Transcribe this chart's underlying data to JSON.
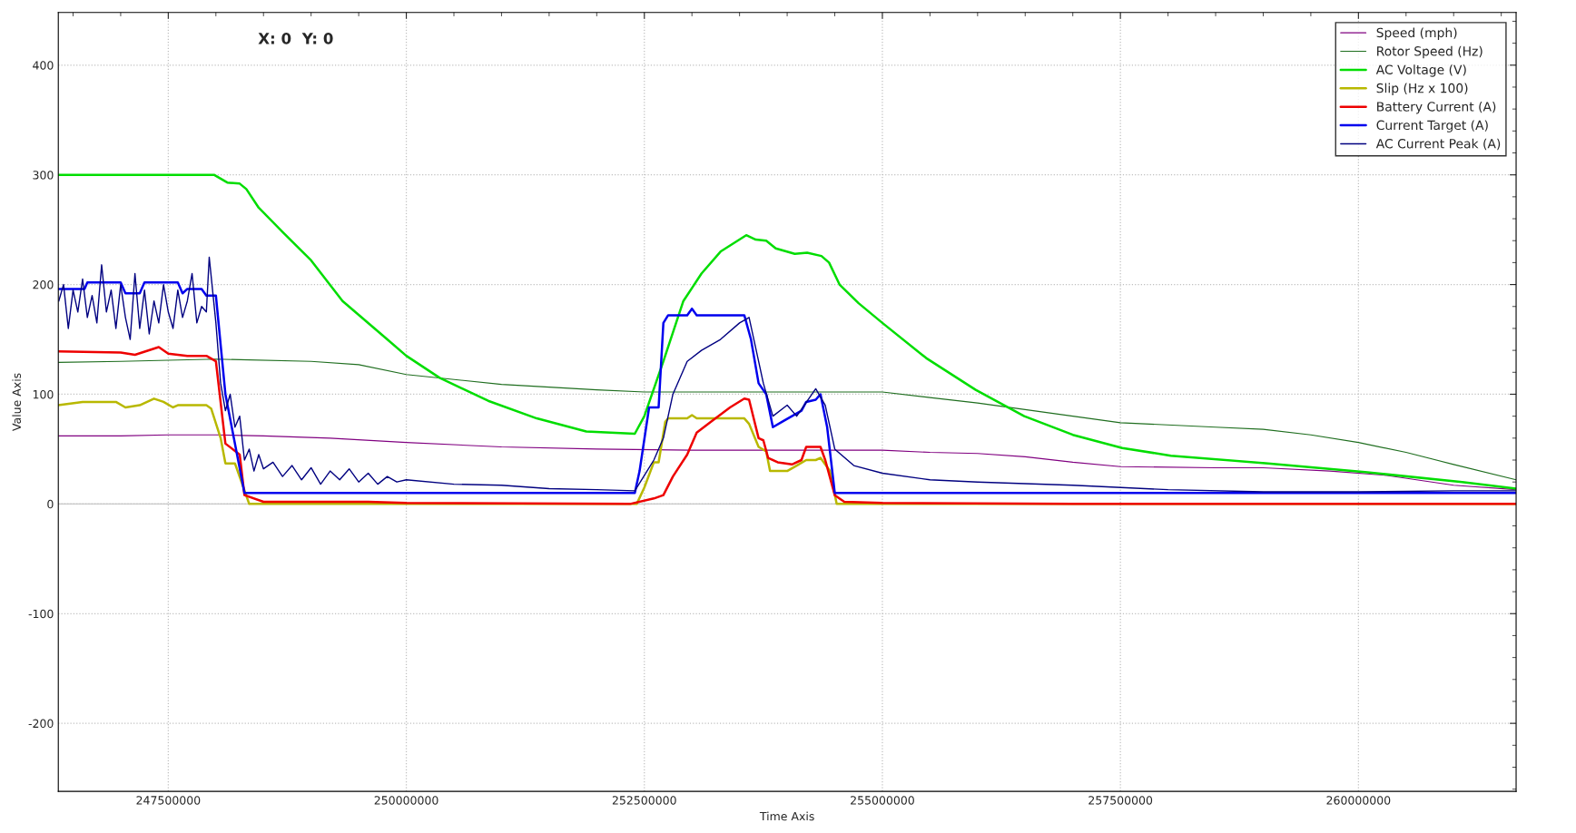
{
  "chart_data": {
    "type": "line",
    "xlabel": "Time Axis",
    "ylabel": "Value Axis",
    "annotations": [
      "X: 0  Y: 0"
    ],
    "xlim": [
      246345000,
      261656000
    ],
    "ylim": [
      -262,
      448
    ],
    "xticks": [
      247500000,
      250000000,
      252500000,
      255000000,
      257500000,
      260000000
    ],
    "yticks": [
      -200,
      -100,
      0,
      100,
      200,
      300,
      400
    ],
    "grid": true,
    "legend": "top right",
    "line_style": "solid",
    "marker": "none",
    "ref_lines": [
      {
        "axis": "y",
        "value": 0,
        "label": null,
        "color": "#c8c8c8"
      }
    ],
    "series": [
      {
        "name": "Speed (mph)",
        "color": "#800080",
        "x": [
          246345000,
          247000000,
          247500000,
          248000000,
          248500000,
          249200000,
          250000000,
          251000000,
          252000000,
          253000000,
          254000000,
          255000000,
          255500000,
          256000000,
          256500000,
          257000000,
          257500000,
          258500000,
          259000000,
          259700000,
          260300000,
          261000000,
          261656000
        ],
        "values": [
          62,
          62,
          63,
          63,
          62,
          60,
          56,
          52,
          50,
          49,
          49,
          49,
          47,
          46,
          43,
          38,
          34,
          33,
          33,
          30,
          26,
          17,
          13
        ]
      },
      {
        "name": "Rotor Speed (Hz)",
        "color": "#1f6e1f",
        "x": [
          246345000,
          247000000,
          248000000,
          249000000,
          249500000,
          250000000,
          251000000,
          252000000,
          252500000,
          253500000,
          255000000,
          255500000,
          256000000,
          256500000,
          257000000,
          257500000,
          258500000,
          259000000,
          259500000,
          260000000,
          260500000,
          261000000,
          261656000
        ],
        "values": [
          129,
          130,
          132,
          130,
          127,
          118,
          109,
          104,
          102,
          102,
          102,
          97,
          92,
          86,
          80,
          74,
          70,
          68,
          63,
          56,
          47,
          36,
          22
        ]
      },
      {
        "name": "AC Voltage (V)",
        "color": "#00dd00",
        "x": [
          246345000,
          247980000,
          248120000,
          248250000,
          248320000,
          248450000,
          248700000,
          249000000,
          249330000,
          249800000,
          250000000,
          250350000,
          250860000,
          251370000,
          251890000,
          252400000,
          252500000,
          252700000,
          252910000,
          253100000,
          253300000,
          253570000,
          253670000,
          253780000,
          253880000,
          254080000,
          254210000,
          254360000,
          254440000,
          254550000,
          254750000,
          255000000,
          255460000,
          255980000,
          256490000,
          257000000,
          257520000,
          258030000,
          259050000,
          260070000,
          261090000,
          261656000
        ],
        "values": [
          300,
          300,
          293,
          292,
          287,
          270,
          248,
          222,
          185,
          150,
          135,
          115,
          94,
          78,
          66,
          64,
          80,
          130,
          185,
          210,
          230,
          245,
          241,
          240,
          233,
          228,
          229,
          226,
          220,
          200,
          183,
          165,
          133,
          104,
          80,
          63,
          51,
          44,
          37,
          29,
          20,
          14
        ]
      },
      {
        "name": "Slip (Hz x 100)",
        "color": "#b8b800",
        "x": [
          246345000,
          246600000,
          246950000,
          247050000,
          247200000,
          247350000,
          247450000,
          247550000,
          247600000,
          247900000,
          247950000,
          248050000,
          248100000,
          248200000,
          248350000,
          252420000,
          252500000,
          252600000,
          252650000,
          252720000,
          252750000,
          252950000,
          253000000,
          253050000,
          253550000,
          253600000,
          253700000,
          253780000,
          253820000,
          254000000,
          254100000,
          254200000,
          254300000,
          254350000,
          254450000,
          254520000,
          261656000
        ],
        "values": [
          90,
          93,
          93,
          88,
          90,
          96,
          93,
          88,
          90,
          90,
          87,
          60,
          37,
          37,
          0,
          0,
          15,
          38,
          38,
          75,
          78,
          78,
          81,
          78,
          78,
          73,
          52,
          48,
          30,
          30,
          35,
          40,
          40,
          42,
          30,
          0,
          0
        ]
      },
      {
        "name": "Battery Current (A)",
        "color": "#ee0000",
        "x": [
          246345000,
          247000000,
          247150000,
          247400000,
          247500000,
          247700000,
          247900000,
          248000000,
          248100000,
          248250000,
          248300000,
          248500000,
          249600000,
          250000000,
          252350000,
          252600000,
          252700000,
          252800000,
          252950000,
          253050000,
          253200000,
          253400000,
          253550000,
          253600000,
          253700000,
          253750000,
          253800000,
          253900000,
          254050000,
          254150000,
          254200000,
          254350000,
          254400000,
          254500000,
          254600000,
          255000000,
          257000000,
          261656000
        ],
        "values": [
          139,
          138,
          136,
          143,
          137,
          135,
          135,
          130,
          55,
          45,
          8,
          2,
          2,
          1,
          0,
          5,
          8,
          25,
          45,
          65,
          75,
          88,
          96,
          95,
          60,
          58,
          42,
          38,
          36,
          40,
          52,
          52,
          40,
          8,
          2,
          1,
          0,
          0
        ]
      },
      {
        "name": "Current Target (A)",
        "color": "#0000ee",
        "x": [
          246345000,
          246620000,
          246650000,
          247000000,
          247050000,
          247200000,
          247250000,
          247600000,
          247650000,
          247700000,
          247850000,
          247900000,
          248000000,
          248100000,
          248300000,
          252400000,
          252450000,
          252550000,
          252650000,
          252700000,
          252750000,
          252950000,
          253000000,
          253050000,
          253550000,
          253620000,
          253700000,
          253780000,
          253850000,
          253950000,
          254050000,
          254150000,
          254200000,
          254300000,
          254350000,
          254420000,
          254500000,
          261656000
        ],
        "values": [
          196,
          196,
          202,
          202,
          192,
          192,
          202,
          202,
          192,
          196,
          196,
          190,
          190,
          100,
          10,
          10,
          30,
          88,
          88,
          165,
          172,
          172,
          178,
          172,
          172,
          150,
          110,
          100,
          70,
          75,
          80,
          85,
          93,
          95,
          100,
          70,
          10,
          10
        ]
      },
      {
        "name": "AC Current Peak (A)",
        "color": "#000080",
        "x": [
          246350000,
          246400000,
          246450000,
          246500000,
          246550000,
          246600000,
          246650000,
          246700000,
          246750000,
          246800000,
          246850000,
          246900000,
          246950000,
          247000000,
          247050000,
          247100000,
          247150000,
          247200000,
          247250000,
          247300000,
          247350000,
          247400000,
          247450000,
          247500000,
          247550000,
          247600000,
          247650000,
          247700000,
          247750000,
          247800000,
          247850000,
          247900000,
          247930000,
          248000000,
          248050000,
          248100000,
          248150000,
          248200000,
          248250000,
          248300000,
          248350000,
          248400000,
          248450000,
          248500000,
          248600000,
          248700000,
          248800000,
          248900000,
          249000000,
          249100000,
          249200000,
          249300000,
          249400000,
          249500000,
          249600000,
          249700000,
          249800000,
          249900000,
          250000000,
          250500000,
          251000000,
          251500000,
          252000000,
          252400000,
          252600000,
          252700000,
          252800000,
          252950000,
          253100000,
          253300000,
          253500000,
          253600000,
          253700000,
          253750000,
          253850000,
          254000000,
          254100000,
          254300000,
          254400000,
          254500000,
          254700000,
          255000000,
          255500000,
          256000000,
          257000000,
          258000000,
          259000000,
          260000000,
          261000000,
          261656000
        ],
        "values": [
          185,
          200,
          160,
          195,
          175,
          205,
          170,
          190,
          165,
          218,
          175,
          195,
          160,
          200,
          170,
          150,
          210,
          160,
          195,
          155,
          185,
          165,
          200,
          175,
          160,
          195,
          170,
          185,
          210,
          165,
          180,
          175,
          225,
          165,
          110,
          85,
          100,
          70,
          80,
          40,
          50,
          30,
          45,
          32,
          38,
          25,
          35,
          22,
          33,
          18,
          30,
          22,
          32,
          20,
          28,
          18,
          25,
          20,
          22,
          18,
          17,
          14,
          13,
          12,
          40,
          60,
          100,
          130,
          140,
          150,
          165,
          170,
          130,
          110,
          80,
          90,
          80,
          105,
          90,
          50,
          35,
          28,
          22,
          20,
          17,
          13,
          11,
          11,
          12,
          12
        ]
      }
    ]
  }
}
